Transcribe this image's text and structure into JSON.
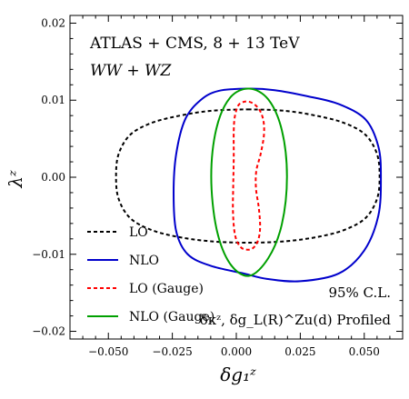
{
  "chart_data": {
    "type": "line",
    "title": "ATLAS + CMS, 8 + 13 TeV",
    "subtitle": "WW + WZ",
    "xlabel": "δg₁ᶻ",
    "ylabel": "λᶻ",
    "xlim": [
      -0.065,
      0.065
    ],
    "ylim": [
      -0.021,
      0.021
    ],
    "x_ticks": [
      -0.05,
      -0.025,
      0.0,
      0.025,
      0.05
    ],
    "x_tick_labels": [
      "−0.050",
      "−0.025",
      "0.000",
      "0.025",
      "0.050"
    ],
    "y_ticks": [
      -0.02,
      -0.01,
      0.0,
      0.01,
      0.02
    ],
    "y_tick_labels": [
      "−0.02",
      "−0.01",
      "0.00",
      "0.01",
      "0.02"
    ],
    "grid": false,
    "legend_position": "bottom-left",
    "annotations": [
      "95% C.L.",
      "δκᶻ, δg_L(R)^Zu(d) Profiled"
    ],
    "series": [
      {
        "name": "LO",
        "color": "#000000",
        "style": "dashed",
        "x": [
          0.0045,
          0.0196,
          0.0325,
          0.0425,
          0.0505,
          0.055,
          0.056,
          0.055,
          0.0505,
          0.0425,
          0.0325,
          0.0196,
          0.0045,
          -0.0106,
          -0.0235,
          -0.0335,
          -0.0415,
          -0.046,
          -0.047,
          -0.046,
          -0.0415,
          -0.0335,
          -0.0235,
          -0.0106,
          0.0045
        ],
        "y": [
          0.0088,
          0.0086,
          0.0079,
          0.007,
          0.0055,
          0.003,
          0.0001,
          -0.0028,
          -0.0053,
          -0.0068,
          -0.0077,
          -0.0083,
          -0.0085,
          -0.0083,
          -0.0077,
          -0.0068,
          -0.0053,
          -0.0028,
          0.0001,
          0.003,
          0.0055,
          0.007,
          0.0079,
          0.0086,
          0.0088
        ]
      },
      {
        "name": "NLO",
        "color": "#0000cc",
        "style": "solid",
        "x": [
          0.0045,
          0.015,
          0.028,
          0.04,
          0.0505,
          0.0555,
          0.0565,
          0.0555,
          0.05,
          0.04,
          0.025,
          0.012,
          0.003,
          -0.01,
          -0.019,
          -0.0235,
          -0.0245,
          -0.0235,
          -0.02,
          -0.014,
          -0.007,
          0.0045
        ],
        "y": [
          0.0115,
          0.0113,
          0.0105,
          0.0095,
          0.0075,
          0.004,
          0.0,
          -0.005,
          -0.0095,
          -0.0125,
          -0.0135,
          -0.0132,
          -0.0125,
          -0.0115,
          -0.01,
          -0.007,
          -0.002,
          0.003,
          0.0075,
          0.01,
          0.0112,
          0.0115
        ]
      },
      {
        "name": "LO (Gauge)",
        "color": "#ff0000",
        "style": "dashed",
        "x": [
          0.005,
          0.0085,
          0.0105,
          0.0108,
          0.0095,
          0.0078,
          0.0077,
          0.0088,
          0.0093,
          0.0085,
          0.0065,
          0.004,
          0.0015,
          -0.0005,
          -0.0013,
          -0.0012,
          -0.001,
          -0.001,
          -0.0005,
          0.0012,
          0.005
        ],
        "y": [
          0.0098,
          0.009,
          0.0075,
          0.0055,
          0.003,
          0.0008,
          -0.0015,
          -0.004,
          -0.0065,
          -0.0082,
          -0.0092,
          -0.0094,
          -0.009,
          -0.0075,
          -0.0045,
          -0.001,
          0.0025,
          0.006,
          0.008,
          0.0095,
          0.0098
        ]
      },
      {
        "name": "NLO (Gauge)",
        "color": "#00a000",
        "style": "solid",
        "x": [
          0.005,
          0.0125,
          0.0178,
          0.0198,
          0.0178,
          0.0125,
          0.005,
          -0.0025,
          -0.0078,
          -0.0098,
          -0.0078,
          -0.0025,
          0.005
        ],
        "y": [
          0.0115,
          0.0101,
          0.0061,
          0.0001,
          -0.0061,
          -0.0105,
          -0.0128,
          -0.0112,
          -0.0066,
          0.0001,
          0.0063,
          0.0103,
          0.0115
        ]
      }
    ]
  }
}
